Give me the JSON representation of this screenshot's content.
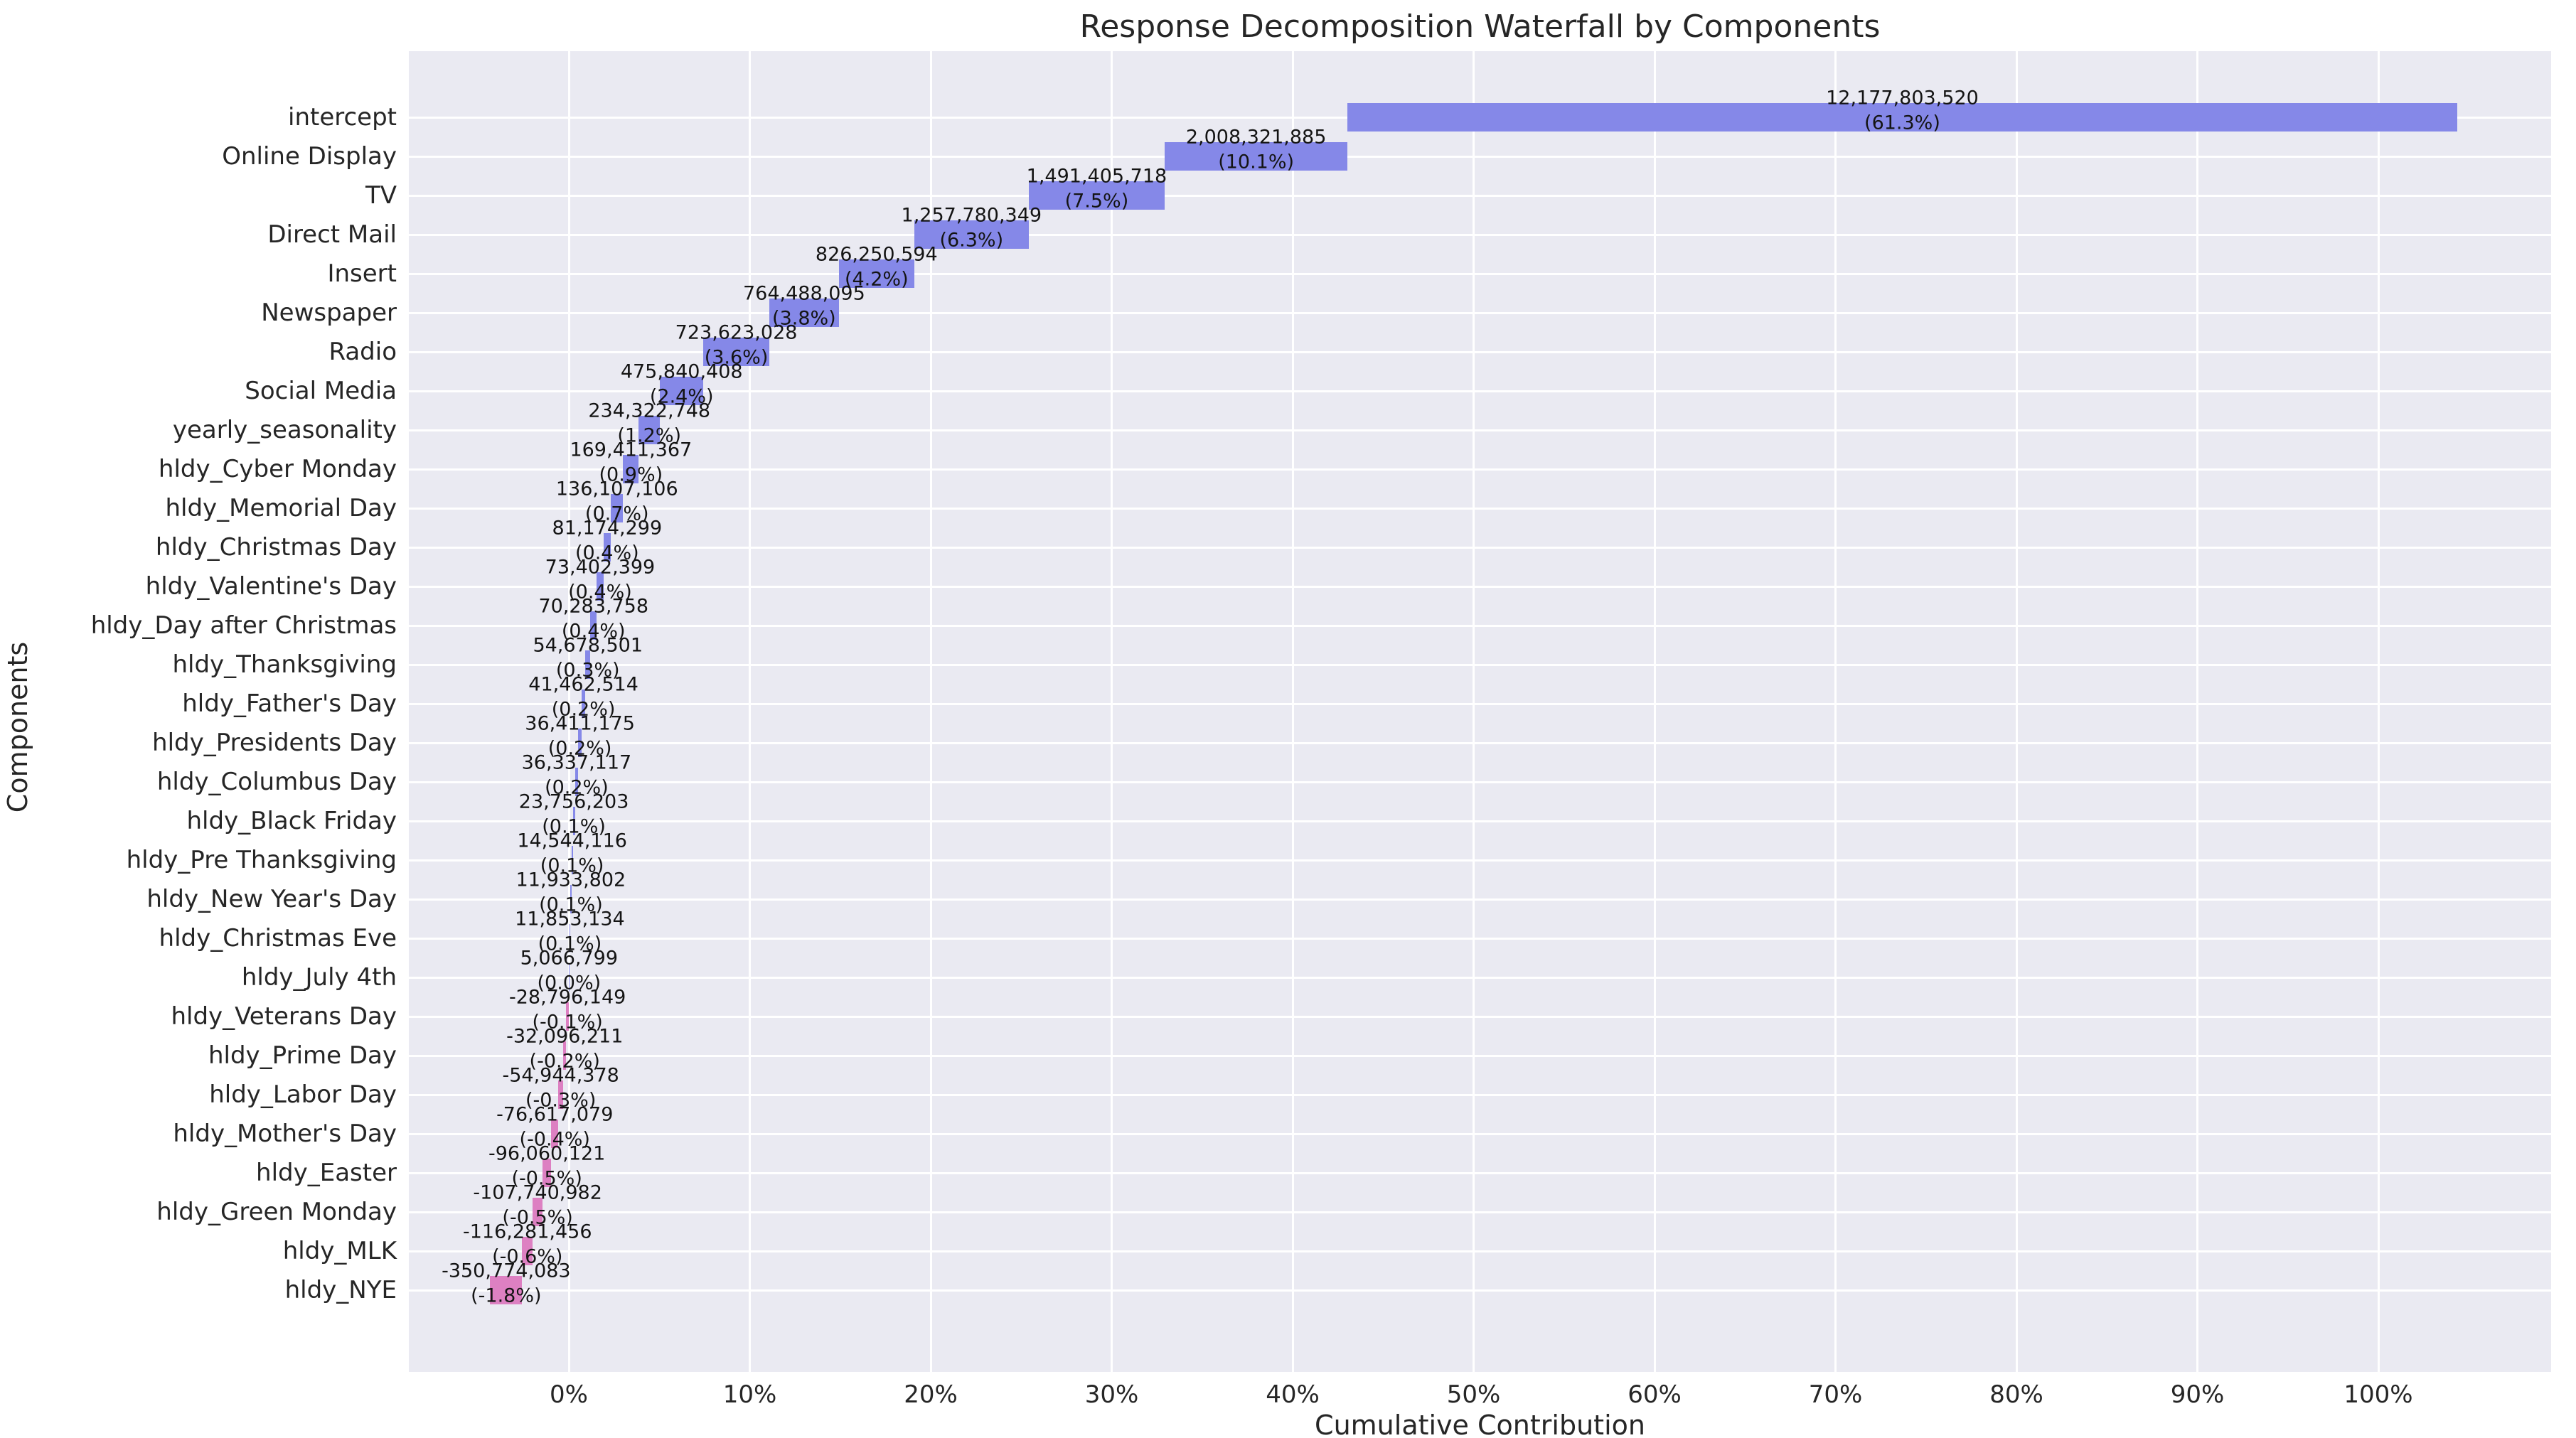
{
  "chart_data": {
    "type": "bar",
    "variant": "waterfall",
    "orientation": "horizontal",
    "title": "Response Decomposition Waterfall by Components",
    "xlabel": "Cumulative Contribution",
    "ylabel": "Components",
    "x_ticks": [
      "0%",
      "10%",
      "20%",
      "30%",
      "40%",
      "50%",
      "60%",
      "70%",
      "80%",
      "90%",
      "100%"
    ],
    "x_tick_values": [
      0,
      10,
      20,
      30,
      40,
      50,
      60,
      70,
      80,
      90,
      100
    ],
    "xlim_pct": [
      -8.8,
      109.5
    ],
    "grid": true,
    "legend": "none",
    "colors": {
      "positive_bar": "#8588e8",
      "negative_bar": "#dd80c2",
      "plot_background": "#eaeaf2",
      "gridline": "#ffffff",
      "text": "#262626"
    },
    "rows": [
      {
        "label": "intercept",
        "value": 12177803520,
        "value_label": "12,177,803,520",
        "pct_label": "(61.3%)"
      },
      {
        "label": "Online Display",
        "value": 2008321885,
        "value_label": "2,008,321,885",
        "pct_label": "(10.1%)"
      },
      {
        "label": "TV",
        "value": 1491405718,
        "value_label": "1,491,405,718",
        "pct_label": "(7.5%)"
      },
      {
        "label": "Direct Mail",
        "value": 1257780349,
        "value_label": "1,257,780,349",
        "pct_label": "(6.3%)"
      },
      {
        "label": "Insert",
        "value": 826250594,
        "value_label": "826,250,594",
        "pct_label": "(4.2%)"
      },
      {
        "label": "Newspaper",
        "value": 764488095,
        "value_label": "764,488,095",
        "pct_label": "(3.8%)"
      },
      {
        "label": "Radio",
        "value": 723623028,
        "value_label": "723,623,028",
        "pct_label": "(3.6%)"
      },
      {
        "label": "Social Media",
        "value": 475840408,
        "value_label": "475,840,408",
        "pct_label": "(2.4%)"
      },
      {
        "label": "yearly_seasonality",
        "value": 234322748,
        "value_label": "234,322,748",
        "pct_label": "(1.2%)"
      },
      {
        "label": "hldy_Cyber Monday",
        "value": 169411367,
        "value_label": "169,411,367",
        "pct_label": "(0.9%)"
      },
      {
        "label": "hldy_Memorial Day",
        "value": 136107106,
        "value_label": "136,107,106",
        "pct_label": "(0.7%)"
      },
      {
        "label": "hldy_Christmas Day",
        "value": 81174299,
        "value_label": "81,174,299",
        "pct_label": "(0.4%)"
      },
      {
        "label": "hldy_Valentine's Day",
        "value": 73402399,
        "value_label": "73,402,399",
        "pct_label": "(0.4%)"
      },
      {
        "label": "hldy_Day after Christmas",
        "value": 70283758,
        "value_label": "70,283,758",
        "pct_label": "(0.4%)"
      },
      {
        "label": "hldy_Thanksgiving",
        "value": 54678501,
        "value_label": "54,678,501",
        "pct_label": "(0.3%)"
      },
      {
        "label": "hldy_Father's Day",
        "value": 41462514,
        "value_label": "41,462,514",
        "pct_label": "(0.2%)"
      },
      {
        "label": "hldy_Presidents Day",
        "value": 36411175,
        "value_label": "36,411,175",
        "pct_label": "(0.2%)"
      },
      {
        "label": "hldy_Columbus Day",
        "value": 36337117,
        "value_label": "36,337,117",
        "pct_label": "(0.2%)"
      },
      {
        "label": "hldy_Black Friday",
        "value": 23756203,
        "value_label": "23,756,203",
        "pct_label": "(0.1%)"
      },
      {
        "label": "hldy_Pre Thanksgiving",
        "value": 14544116,
        "value_label": "14,544,116",
        "pct_label": "(0.1%)"
      },
      {
        "label": "hldy_New Year's Day",
        "value": 11933802,
        "value_label": "11,933,802",
        "pct_label": "(0.1%)"
      },
      {
        "label": "hldy_Christmas Eve",
        "value": 11853134,
        "value_label": "11,853,134",
        "pct_label": "(0.1%)"
      },
      {
        "label": "hldy_July 4th",
        "value": 5066799,
        "value_label": "5,066,799",
        "pct_label": "(0.0%)"
      },
      {
        "label": "hldy_Veterans Day",
        "value": -28796149,
        "value_label": "-28,796,149",
        "pct_label": "(-0.1%)"
      },
      {
        "label": "hldy_Prime Day",
        "value": -32096211,
        "value_label": "-32,096,211",
        "pct_label": "(-0.2%)"
      },
      {
        "label": "hldy_Labor Day",
        "value": -54944378,
        "value_label": "-54,944,378",
        "pct_label": "(-0.3%)"
      },
      {
        "label": "hldy_Mother's Day",
        "value": -76617079,
        "value_label": "-76,617,079",
        "pct_label": "(-0.4%)"
      },
      {
        "label": "hldy_Easter",
        "value": -96060121,
        "value_label": "-96,060,121",
        "pct_label": "(-0.5%)"
      },
      {
        "label": "hldy_Green Monday",
        "value": -107740982,
        "value_label": "-107,740,982",
        "pct_label": "(-0.5%)"
      },
      {
        "label": "hldy_MLK",
        "value": -116281456,
        "value_label": "-116,281,456",
        "pct_label": "(-0.6%)"
      },
      {
        "label": "hldy_NYE",
        "value": -350774083,
        "value_label": "-350,774,083",
        "pct_label": "(-1.8%)"
      }
    ]
  }
}
